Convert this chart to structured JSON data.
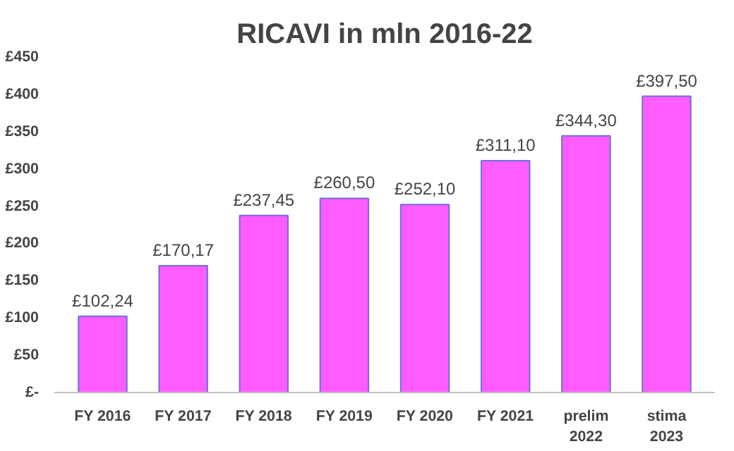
{
  "chart_data": {
    "type": "bar",
    "title": "RICAVI in mln 2016-22",
    "categories": [
      "FY 2016",
      "FY 2017",
      "FY 2018",
      "FY 2019",
      "FY 2020",
      "FY 2021",
      "prelim 2022",
      "stima 2023"
    ],
    "values": [
      102.24,
      170.17,
      237.45,
      260.5,
      252.1,
      311.1,
      344.3,
      397.5
    ],
    "value_labels": [
      "£102,24",
      "£170,17",
      "£237,45",
      "£260,50",
      "£252,10",
      "£311,10",
      "£344,30",
      "£397,50"
    ],
    "color": "#ff5cff",
    "ylim": [
      0,
      450
    ],
    "yticks": [
      {
        "value": 0,
        "label": "£-"
      },
      {
        "value": 50,
        "label": "£50"
      },
      {
        "value": 100,
        "label": "£100"
      },
      {
        "value": 150,
        "label": "£150"
      },
      {
        "value": 200,
        "label": "£200"
      },
      {
        "value": 250,
        "label": "£250"
      },
      {
        "value": 300,
        "label": "£300"
      },
      {
        "value": 350,
        "label": "£350"
      },
      {
        "value": 400,
        "label": "£400"
      },
      {
        "value": 450,
        "label": "£450"
      }
    ],
    "grid": false
  }
}
